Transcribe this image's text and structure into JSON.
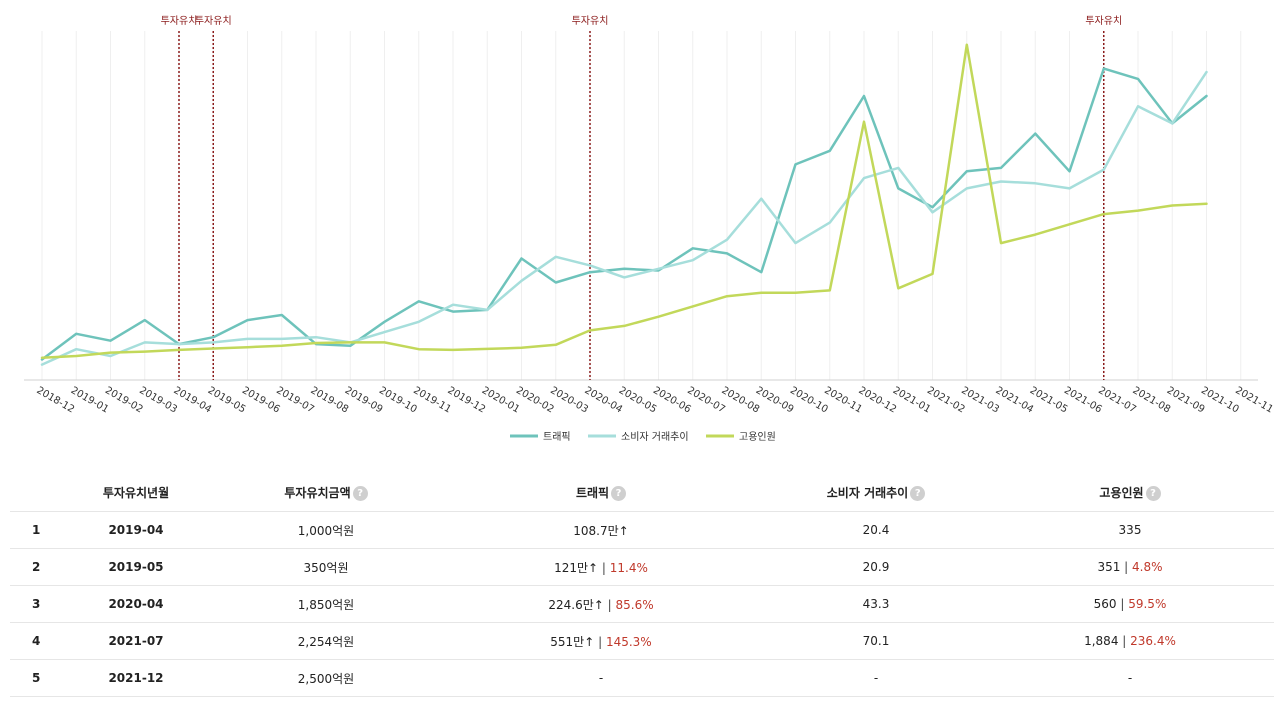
{
  "chart_data": {
    "type": "line",
    "categories": [
      "2018-12",
      "2019-01",
      "2019-02",
      "2019-03",
      "2019-04",
      "2019-05",
      "2019-06",
      "2019-07",
      "2019-08",
      "2019-09",
      "2019-10",
      "2019-11",
      "2019-12",
      "2020-01",
      "2020-02",
      "2020-03",
      "2020-04",
      "2020-05",
      "2020-06",
      "2020-07",
      "2020-08",
      "2020-09",
      "2020-10",
      "2020-11",
      "2020-12",
      "2021-01",
      "2021-02",
      "2021-03",
      "2021-04",
      "2021-05",
      "2021-06",
      "2021-07",
      "2021-08",
      "2021-09",
      "2021-10",
      "2021-11"
    ],
    "series": [
      {
        "name": "트래픽",
        "color": "#6ec3bb",
        "values": [
          6,
          13.5,
          11.5,
          17.5,
          10.5,
          12.5,
          17.5,
          19,
          10.5,
          10,
          17,
          23,
          20,
          20.5,
          35.5,
          28.5,
          31.5,
          32.5,
          32,
          38.5,
          37,
          31.5,
          63,
          67,
          83,
          56,
          50.5,
          61,
          62,
          72,
          61,
          91,
          88,
          75,
          83,
          null
        ]
      },
      {
        "name": "소비자 거래추이",
        "color": "#a6dedb",
        "values": [
          4.5,
          9,
          7,
          11,
          10.5,
          11,
          12,
          12,
          12.5,
          11,
          14,
          17,
          22,
          20.5,
          29,
          36,
          33.5,
          30,
          32.5,
          35,
          41,
          53,
          40,
          46,
          59,
          62,
          49,
          56,
          58,
          57.5,
          56,
          61.5,
          80,
          75,
          90,
          null
        ]
      },
      {
        "name": "고용인원",
        "color": "#c2d85a",
        "values": [
          6.5,
          7,
          8,
          8.3,
          8.8,
          9.2,
          9.6,
          10,
          10.8,
          11,
          11,
          9,
          8.8,
          9.1,
          9.4,
          10.3,
          14.5,
          15.8,
          18.5,
          21.5,
          24.5,
          25.5,
          25.5,
          26.2,
          75.5,
          26.8,
          31,
          98,
          40,
          42.5,
          45.5,
          48.5,
          49.5,
          51,
          51.5,
          null
        ]
      }
    ],
    "ylim": [
      0,
      102
    ],
    "xlabel": "",
    "ylabel": "",
    "grid": true,
    "legend": "bottom-center",
    "markers": [
      {
        "category": "2019-04",
        "label": "투자유치"
      },
      {
        "category": "2019-05",
        "label": "투자유치"
      },
      {
        "category": "2020-04",
        "label": "투자유치"
      },
      {
        "category": "2021-07",
        "label": "투자유치"
      }
    ]
  },
  "table": {
    "headers": {
      "date": "투자유치년월",
      "amount": "투자유치금액",
      "traffic": "트래픽",
      "consumer": "소비자 거래추이",
      "employees": "고용인원"
    },
    "help_glyph": "?",
    "rows": [
      {
        "idx": "1",
        "date": "2019-04",
        "amount": "1,000억원",
        "traffic": "108.7만",
        "traffic_arrow": "↑",
        "traffic_sep": "",
        "traffic_pct": "",
        "consumer": "20.4",
        "employees": "335",
        "employees_sep": "",
        "employees_pct": ""
      },
      {
        "idx": "2",
        "date": "2019-05",
        "amount": "350억원",
        "traffic": "121만",
        "traffic_arrow": "↑",
        "traffic_sep": " | ",
        "traffic_pct": "11.4%",
        "consumer": "20.9",
        "employees": "351",
        "employees_sep": " | ",
        "employees_pct": "4.8%"
      },
      {
        "idx": "3",
        "date": "2020-04",
        "amount": "1,850억원",
        "traffic": "224.6만",
        "traffic_arrow": "↑",
        "traffic_sep": " | ",
        "traffic_pct": "85.6%",
        "consumer": "43.3",
        "employees": "560",
        "employees_sep": " | ",
        "employees_pct": "59.5%"
      },
      {
        "idx": "4",
        "date": "2021-07",
        "amount": "2,254억원",
        "traffic": "551만",
        "traffic_arrow": "↑",
        "traffic_sep": " | ",
        "traffic_pct": "145.3%",
        "consumer": "70.1",
        "employees": "1,884",
        "employees_sep": " | ",
        "employees_pct": "236.4%"
      },
      {
        "idx": "5",
        "date": "2021-12",
        "amount": "2,500억원",
        "traffic": "-",
        "traffic_arrow": "",
        "traffic_sep": "",
        "traffic_pct": "",
        "consumer": "-",
        "employees": "-",
        "employees_sep": "",
        "employees_pct": ""
      }
    ]
  }
}
